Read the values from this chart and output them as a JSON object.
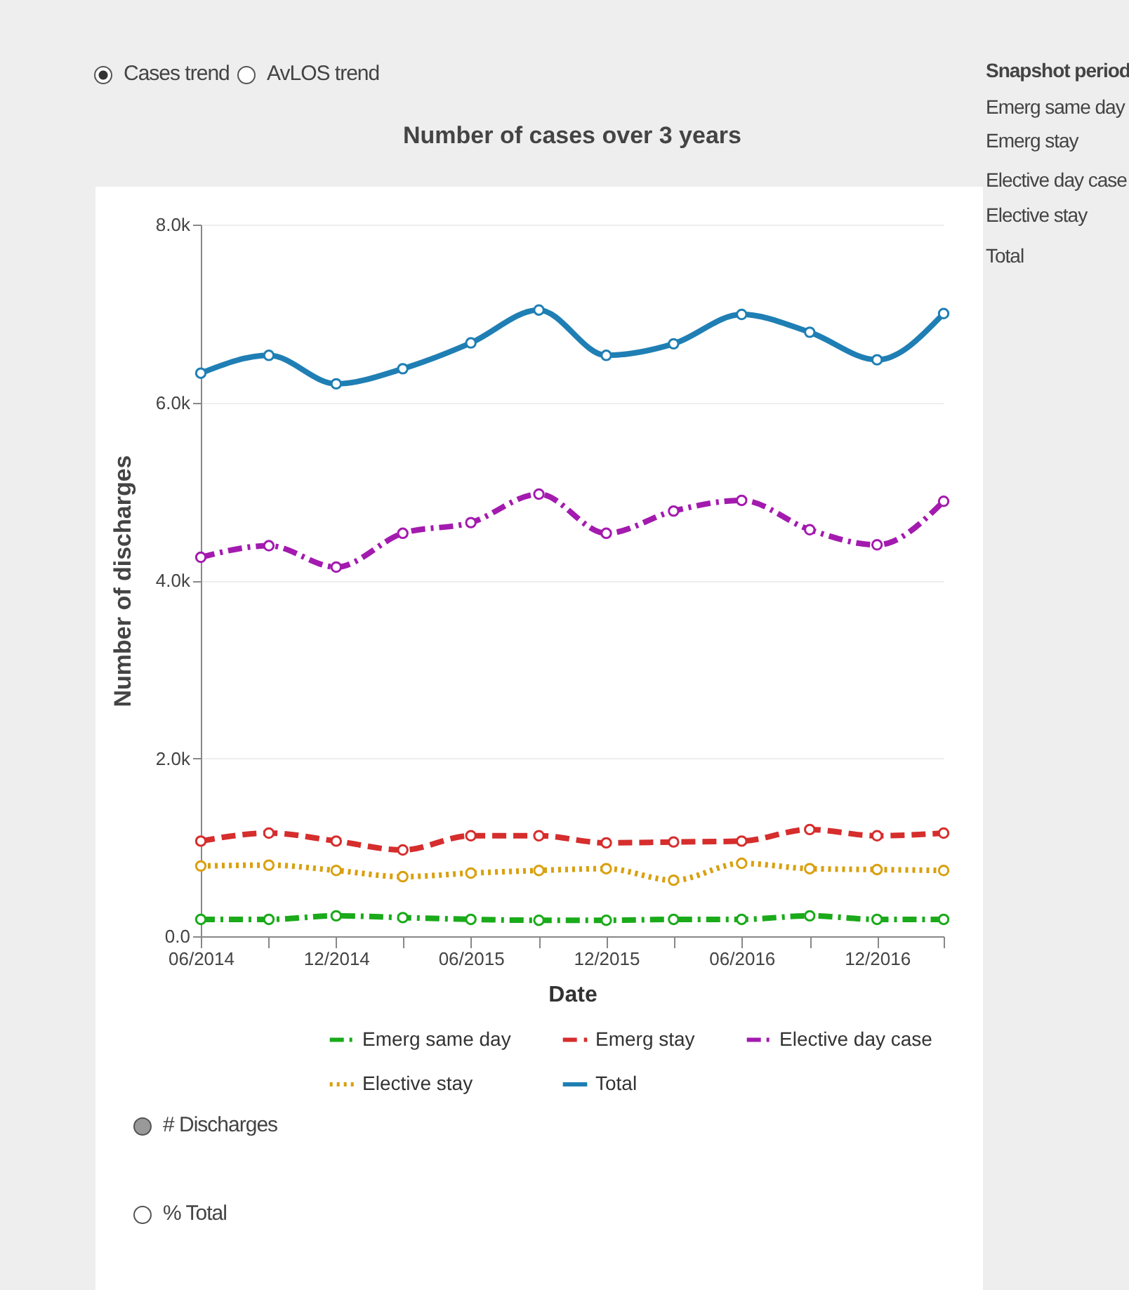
{
  "chart_data": {
    "type": "line",
    "title": "Number of cases over 3 years",
    "xlabel": "Date",
    "ylabel": "Number of discharges",
    "x": [
      "2014-06",
      "2014-09",
      "2014-12",
      "2015-03",
      "2015-06",
      "2015-09",
      "2015-12",
      "2016-03",
      "2016-06",
      "2016-09",
      "2016-12",
      "2017-03"
    ],
    "series": [
      {
        "name": "Emerg same day",
        "color": "#1aaa1a",
        "line_style": "dashdot",
        "values": [
          190,
          190,
          230,
          210,
          190,
          180,
          180,
          190,
          190,
          230,
          190,
          190
        ]
      },
      {
        "name": "Emerg stay",
        "color": "#d62d2d",
        "line_style": "dashed",
        "values": [
          1070,
          1160,
          1070,
          970,
          1130,
          1130,
          1050,
          1060,
          1070,
          1200,
          1130,
          1160
        ]
      },
      {
        "name": "Elective day case",
        "color": "#a31aaf",
        "line_style": "dashdot",
        "values": [
          4260,
          4390,
          4150,
          4530,
          4650,
          4970,
          4530,
          4780,
          4900,
          4570,
          4400,
          4890
        ]
      },
      {
        "name": "Elective stay",
        "color": "#d9a00f",
        "line_style": "dotted",
        "values": [
          790,
          800,
          740,
          670,
          710,
          740,
          760,
          630,
          820,
          760,
          750,
          740
        ]
      },
      {
        "name": "Total",
        "color": "#1f7fb4",
        "line_style": "solid",
        "values": [
          6330,
          6530,
          6210,
          6380,
          6670,
          7040,
          6530,
          6660,
          6990,
          6790,
          6480,
          7000
        ]
      }
    ],
    "xlim": [
      "2014-06",
      "2017-03"
    ],
    "xticks": [
      {
        "value": "2014-06",
        "label": "06/2014"
      },
      {
        "value": "2014-09",
        "label": null
      },
      {
        "value": "2014-12",
        "label": "12/2014"
      },
      {
        "value": "2015-03",
        "label": null
      },
      {
        "value": "2015-06",
        "label": "06/2015"
      },
      {
        "value": "2015-09",
        "label": null
      },
      {
        "value": "2015-12",
        "label": "12/2015"
      },
      {
        "value": "2016-03",
        "label": null
      },
      {
        "value": "2016-06",
        "label": "06/2016"
      },
      {
        "value": "2016-09",
        "label": null
      },
      {
        "value": "2016-12",
        "label": "12/2016"
      },
      {
        "value": "2017-03",
        "label": null
      }
    ],
    "ylim": [
      0,
      8000
    ],
    "yticks": [
      {
        "value": 0,
        "label": "0.0"
      },
      {
        "value": 2000,
        "label": "2.0k"
      },
      {
        "value": 4000,
        "label": "4.0k"
      },
      {
        "value": 6000,
        "label": "6.0k"
      },
      {
        "value": 8000,
        "label": "8.0k"
      }
    ],
    "grid": "y",
    "legend": "bottom",
    "marker": "circle",
    "annotations": [
      "Cases trend",
      "AvLOS trend",
      "Snapshot period",
      "Emerg same day",
      "Emerg stay",
      "Elective day case",
      "Elective stay",
      "Total",
      "# Discharges",
      "% Total"
    ]
  }
}
